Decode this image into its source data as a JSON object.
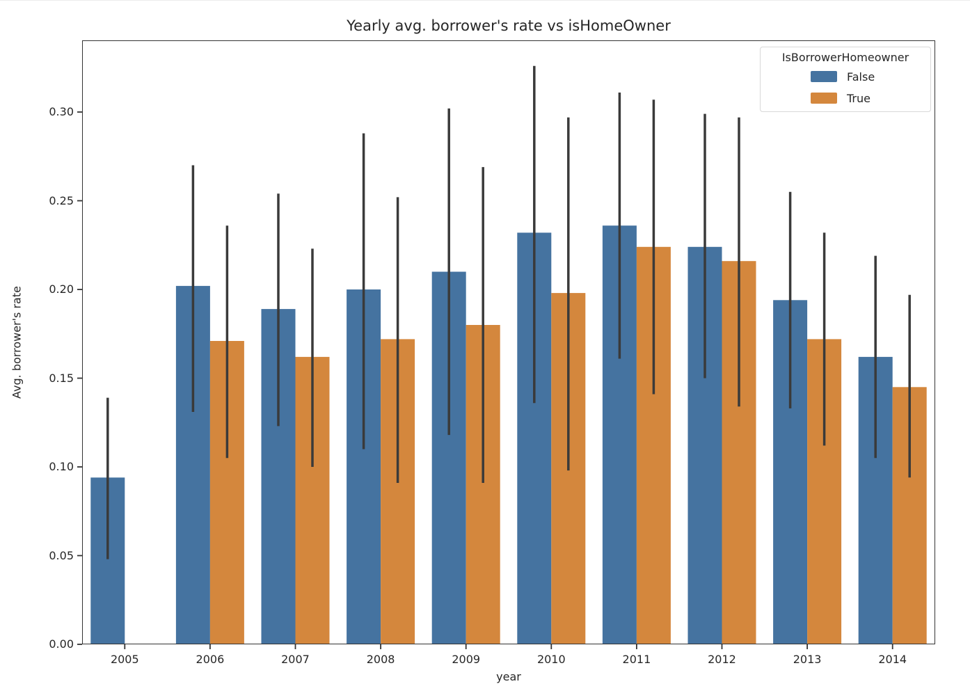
{
  "chart_data": {
    "type": "bar",
    "title": "Yearly avg. borrower's rate vs isHomeOwner",
    "xlabel": "year",
    "ylabel": "Avg. borrower's rate",
    "legend_title": "IsBorrowerHomeowner",
    "legend_position": "upper right",
    "grid": false,
    "categories": [
      "2005",
      "2006",
      "2007",
      "2008",
      "2009",
      "2010",
      "2011",
      "2012",
      "2013",
      "2014"
    ],
    "ylim": [
      0,
      0.3404
    ],
    "yticks": [
      0.0,
      0.05,
      0.1,
      0.15,
      0.2,
      0.25,
      0.3
    ],
    "series": [
      {
        "name": "False",
        "color": "#4573A0",
        "values": [
          0.094,
          0.202,
          0.189,
          0.2,
          0.21,
          0.232,
          0.236,
          0.224,
          0.194,
          0.162
        ],
        "err_low": [
          0.048,
          0.131,
          0.123,
          0.11,
          0.118,
          0.136,
          0.161,
          0.15,
          0.133,
          0.105
        ],
        "err_high": [
          0.139,
          0.27,
          0.254,
          0.288,
          0.302,
          0.326,
          0.311,
          0.299,
          0.255,
          0.219
        ]
      },
      {
        "name": "True",
        "color": "#D4873D",
        "values": [
          null,
          0.171,
          0.162,
          0.172,
          0.18,
          0.198,
          0.224,
          0.216,
          0.172,
          0.145
        ],
        "err_low": [
          null,
          0.105,
          0.1,
          0.091,
          0.091,
          0.098,
          0.141,
          0.134,
          0.112,
          0.094
        ],
        "err_high": [
          null,
          0.236,
          0.223,
          0.252,
          0.269,
          0.297,
          0.307,
          0.297,
          0.232,
          0.197
        ]
      }
    ],
    "error_bar_color": "#3a3a3a",
    "spine_color": "#333333",
    "text_color": "#262626"
  }
}
